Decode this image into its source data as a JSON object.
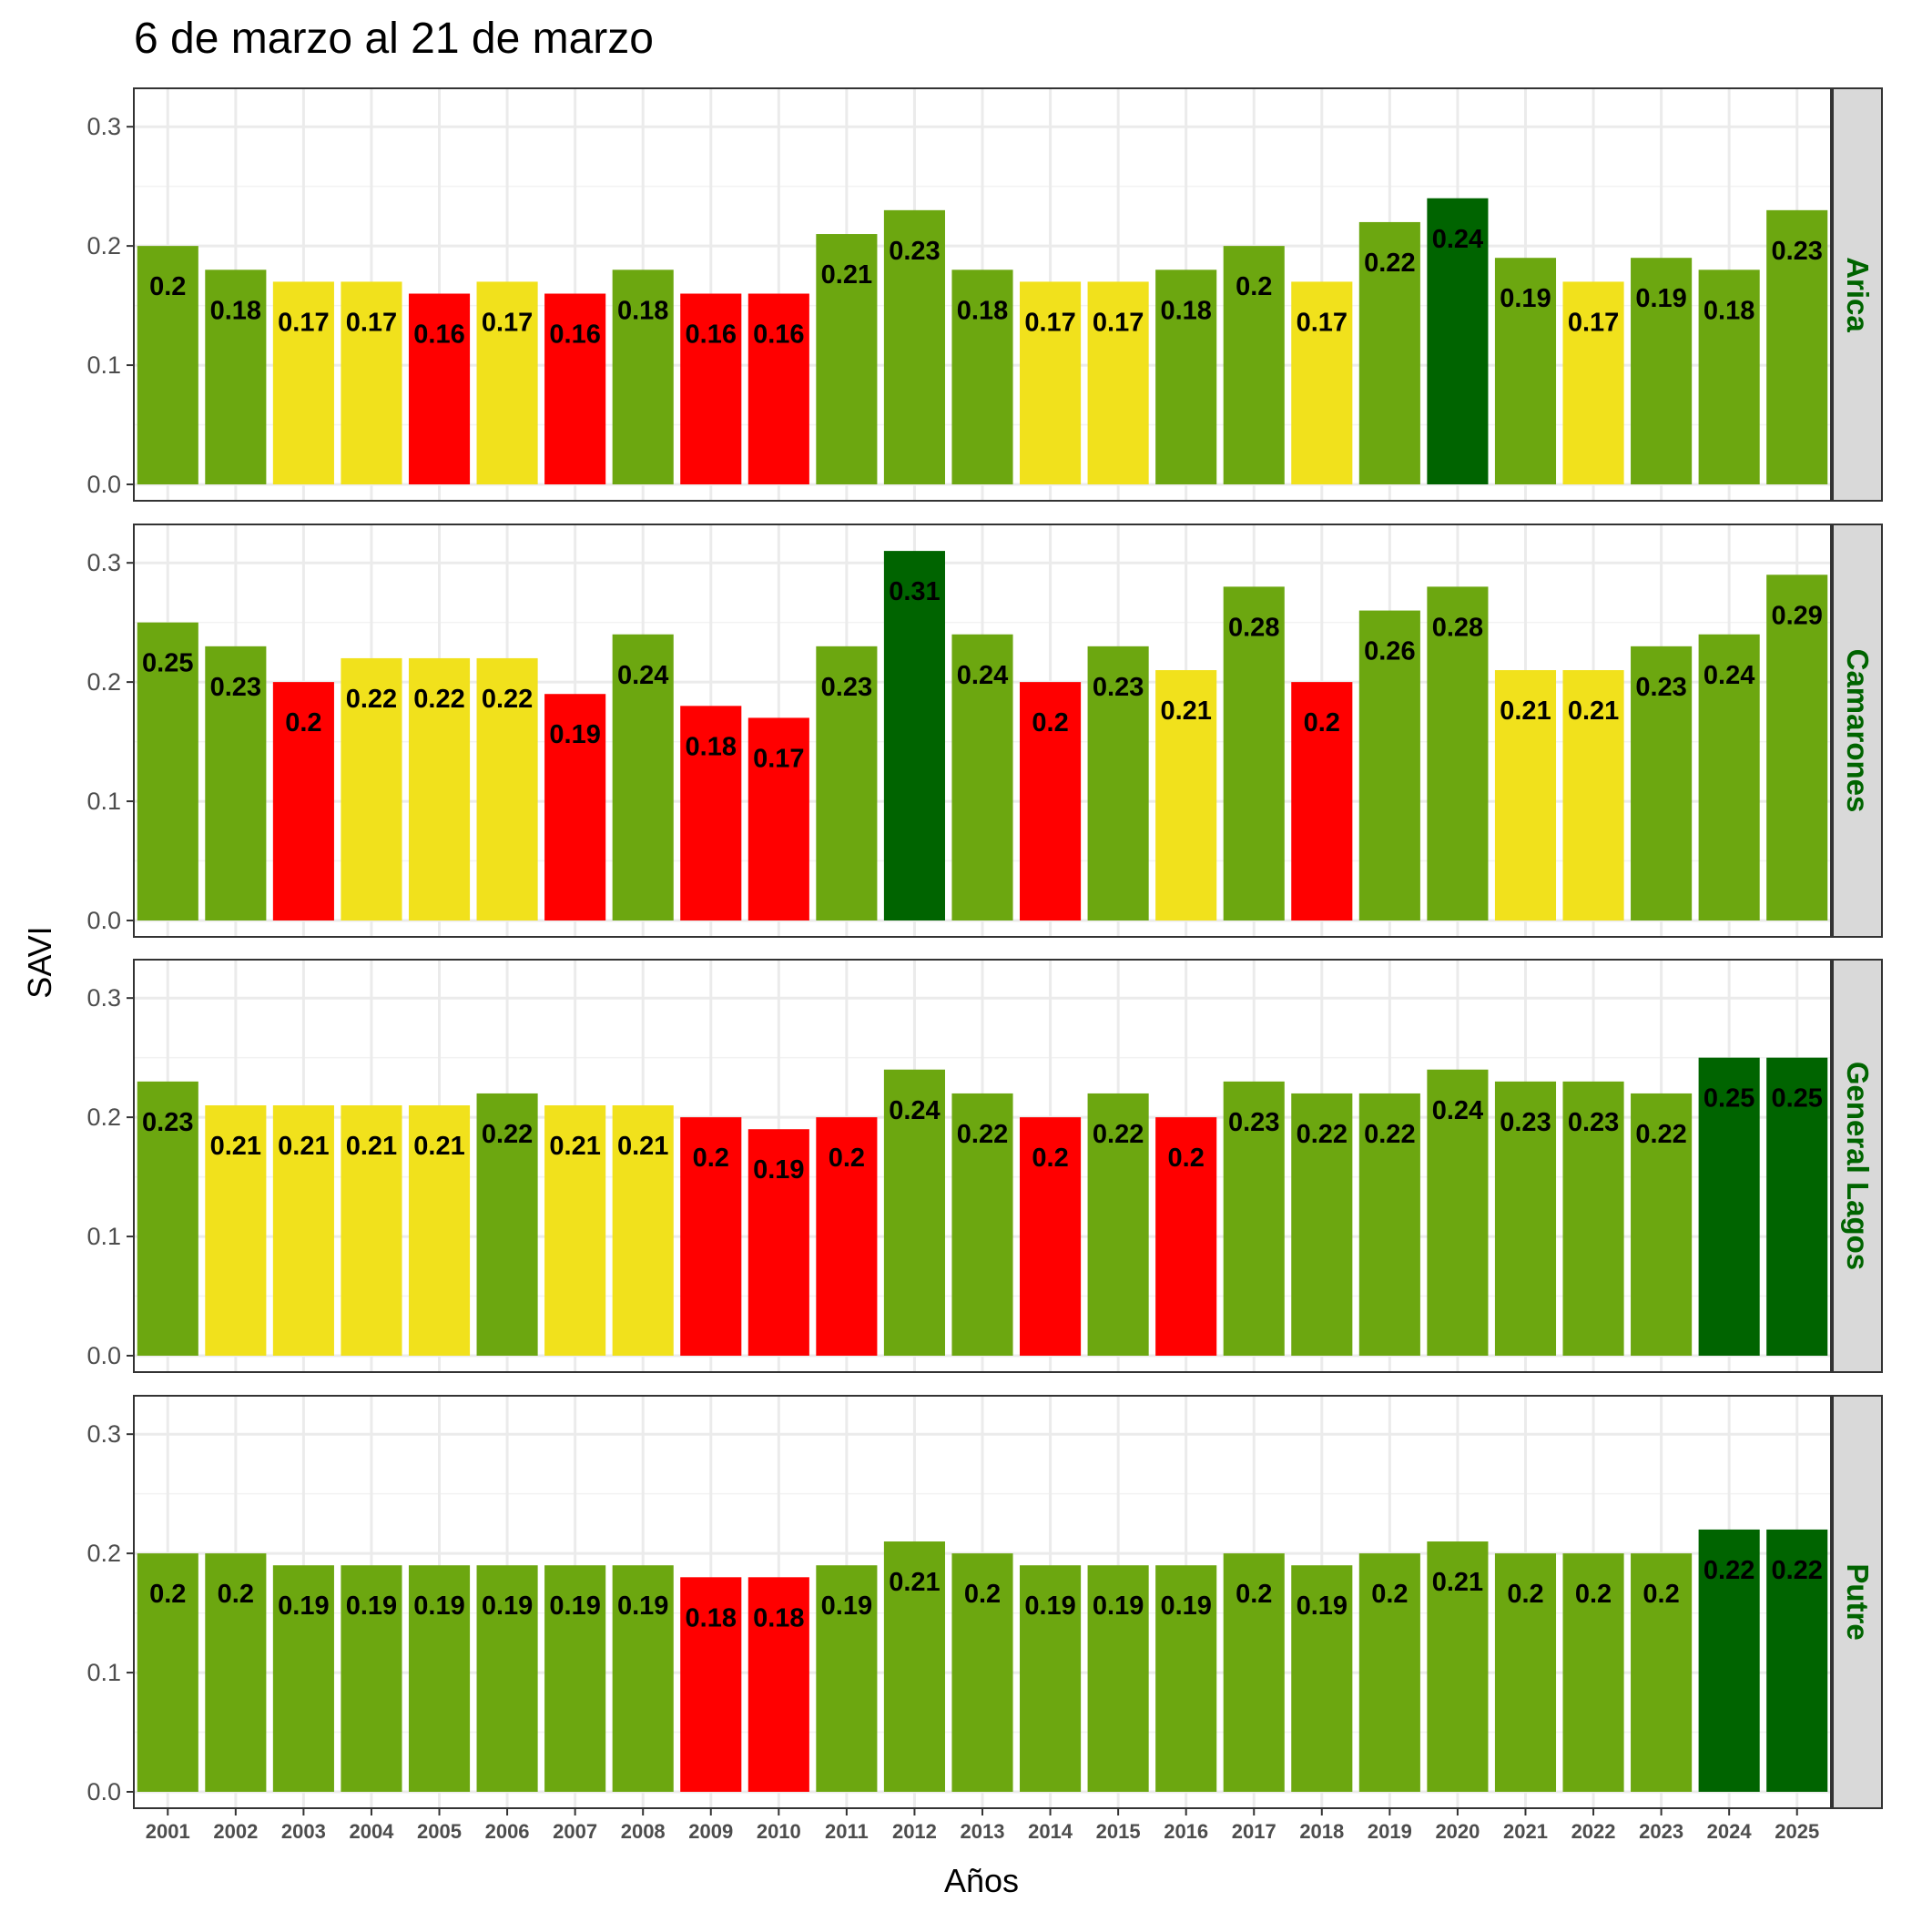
{
  "chart_data": {
    "type": "bar",
    "title": "6 de marzo al 21 de marzo",
    "xlabel": "Años",
    "ylabel": "SAVI",
    "ylim": [
      0,
      0.32
    ],
    "yticks": [
      "0.0",
      "0.1",
      "0.2",
      "0.3"
    ],
    "ytick_values": [
      0,
      0.1,
      0.2,
      0.3
    ],
    "grid": true,
    "categories": [
      "2001",
      "2002",
      "2003",
      "2004",
      "2005",
      "2006",
      "2007",
      "2008",
      "2009",
      "2010",
      "2011",
      "2012",
      "2013",
      "2014",
      "2015",
      "2016",
      "2017",
      "2018",
      "2019",
      "2020",
      "2021",
      "2022",
      "2023",
      "2024",
      "2025"
    ],
    "palette": {
      "red": "#ff0000",
      "yellow": "#f1e11c",
      "green": "#6ca710",
      "darkgreen": "#006400",
      "strip_bg": "#d9d9d9",
      "strip_text": "#006400"
    },
    "series": [
      {
        "name": "Arica",
        "values": [
          0.2,
          0.18,
          0.17,
          0.17,
          0.16,
          0.17,
          0.16,
          0.18,
          0.16,
          0.16,
          0.21,
          0.23,
          0.18,
          0.17,
          0.17,
          0.18,
          0.2,
          0.17,
          0.22,
          0.24,
          0.19,
          0.17,
          0.19,
          0.18,
          0.23
        ],
        "labels": [
          "0.2",
          "0.18",
          "0.17",
          "0.17",
          "0.16",
          "0.17",
          "0.16",
          "0.18",
          "0.16",
          "0.16",
          "0.21",
          "0.23",
          "0.18",
          "0.17",
          "0.17",
          "0.18",
          "0.2",
          "0.17",
          "0.22",
          "0.24",
          "0.19",
          "0.17",
          "0.19",
          "0.18",
          "0.23"
        ],
        "colors": [
          "green",
          "green",
          "yellow",
          "yellow",
          "red",
          "yellow",
          "red",
          "green",
          "red",
          "red",
          "green",
          "green",
          "green",
          "yellow",
          "yellow",
          "green",
          "green",
          "yellow",
          "green",
          "darkgreen",
          "green",
          "yellow",
          "green",
          "green",
          "green"
        ]
      },
      {
        "name": "Camarones",
        "values": [
          0.25,
          0.23,
          0.2,
          0.22,
          0.22,
          0.22,
          0.19,
          0.24,
          0.18,
          0.17,
          0.23,
          0.31,
          0.24,
          0.2,
          0.23,
          0.21,
          0.28,
          0.2,
          0.26,
          0.28,
          0.21,
          0.21,
          0.23,
          0.24,
          0.29
        ],
        "labels": [
          "0.25",
          "0.23",
          "0.2",
          "0.22",
          "0.22",
          "0.22",
          "0.19",
          "0.24",
          "0.18",
          "0.17",
          "0.23",
          "0.31",
          "0.24",
          "0.2",
          "0.23",
          "0.21",
          "0.28",
          "0.2",
          "0.26",
          "0.28",
          "0.21",
          "0.21",
          "0.23",
          "0.24",
          "0.29"
        ],
        "colors": [
          "green",
          "green",
          "red",
          "yellow",
          "yellow",
          "yellow",
          "red",
          "green",
          "red",
          "red",
          "green",
          "darkgreen",
          "green",
          "red",
          "green",
          "yellow",
          "green",
          "red",
          "green",
          "green",
          "yellow",
          "yellow",
          "green",
          "green",
          "green"
        ]
      },
      {
        "name": "General Lagos",
        "values": [
          0.23,
          0.21,
          0.21,
          0.21,
          0.21,
          0.22,
          0.21,
          0.21,
          0.2,
          0.19,
          0.2,
          0.24,
          0.22,
          0.2,
          0.22,
          0.2,
          0.23,
          0.22,
          0.22,
          0.24,
          0.23,
          0.23,
          0.22,
          0.25,
          0.25
        ],
        "labels": [
          "0.23",
          "0.21",
          "0.21",
          "0.21",
          "0.21",
          "0.22",
          "0.21",
          "0.21",
          "0.2",
          "0.19",
          "0.2",
          "0.24",
          "0.22",
          "0.2",
          "0.22",
          "0.2",
          "0.23",
          "0.22",
          "0.22",
          "0.24",
          "0.23",
          "0.23",
          "0.22",
          "0.25",
          "0.25"
        ],
        "colors": [
          "green",
          "yellow",
          "yellow",
          "yellow",
          "yellow",
          "green",
          "yellow",
          "yellow",
          "red",
          "red",
          "red",
          "green",
          "green",
          "red",
          "green",
          "red",
          "green",
          "green",
          "green",
          "green",
          "green",
          "green",
          "green",
          "darkgreen",
          "darkgreen"
        ]
      },
      {
        "name": "Putre",
        "values": [
          0.2,
          0.2,
          0.19,
          0.19,
          0.19,
          0.19,
          0.19,
          0.19,
          0.18,
          0.18,
          0.19,
          0.21,
          0.2,
          0.19,
          0.19,
          0.19,
          0.2,
          0.19,
          0.2,
          0.21,
          0.2,
          0.2,
          0.2,
          0.22,
          0.22
        ],
        "labels": [
          "0.2",
          "0.2",
          "0.19",
          "0.19",
          "0.19",
          "0.19",
          "0.19",
          "0.19",
          "0.18",
          "0.18",
          "0.19",
          "0.21",
          "0.2",
          "0.19",
          "0.19",
          "0.19",
          "0.2",
          "0.19",
          "0.2",
          "0.21",
          "0.2",
          "0.2",
          "0.2",
          "0.22",
          "0.22"
        ],
        "colors": [
          "green",
          "green",
          "green",
          "green",
          "green",
          "green",
          "green",
          "green",
          "red",
          "red",
          "green",
          "green",
          "green",
          "green",
          "green",
          "green",
          "green",
          "green",
          "green",
          "green",
          "green",
          "green",
          "green",
          "darkgreen",
          "darkgreen"
        ]
      }
    ]
  }
}
